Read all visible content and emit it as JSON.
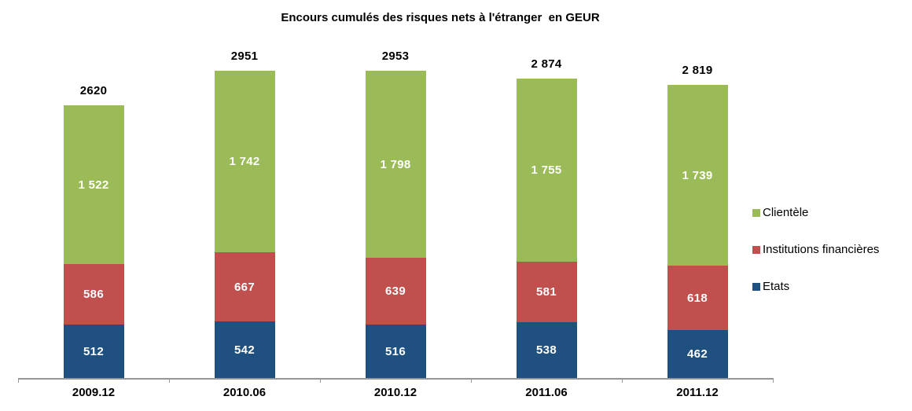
{
  "title": "Encours cumulés des risques nets à l'étranger  en GEUR",
  "chart_data": {
    "type": "bar",
    "stacked": true,
    "title": "Encours cumulés des risques nets à l'étranger  en GEUR",
    "xlabel": "",
    "ylabel": "",
    "unit": "GEUR",
    "grid": false,
    "legend_position": "right",
    "axis_color": "#969696",
    "categories": [
      "2009.12",
      "2010.06",
      "2010.12",
      "2011.06",
      "2011.12"
    ],
    "series": [
      {
        "name": "Etats",
        "color": "#1F5080",
        "values": [
          512,
          542,
          516,
          538,
          462
        ],
        "labels": [
          "512",
          "542",
          "516",
          "538",
          "462"
        ]
      },
      {
        "name": "Institutions financières",
        "color": "#C0504D",
        "values": [
          586,
          667,
          639,
          581,
          618
        ],
        "labels": [
          "586",
          "667",
          "639",
          "581",
          "618"
        ]
      },
      {
        "name": "Clientèle",
        "color": "#9BBB59",
        "values": [
          1522,
          1742,
          1798,
          1755,
          1739
        ],
        "labels": [
          "1 522",
          "1 742",
          "1 798",
          "1 755",
          "1 739"
        ]
      }
    ],
    "totals": [
      2620,
      2951,
      2953,
      2874,
      2819
    ],
    "total_labels": [
      "2620",
      "2951",
      "2953",
      "2 874",
      "2 819"
    ],
    "legend": [
      {
        "label": "Clientèle",
        "color": "#9BBB59"
      },
      {
        "label": "Institutions financières",
        "color": "#C0504D"
      },
      {
        "label": "Etats",
        "color": "#1F5080"
      }
    ]
  }
}
